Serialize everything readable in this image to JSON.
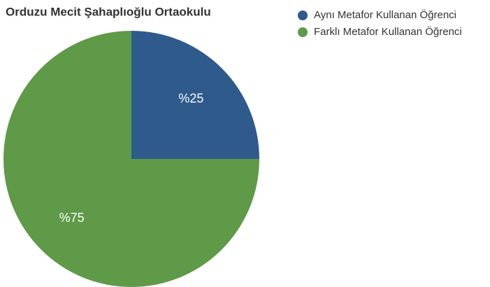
{
  "chart_data": {
    "type": "pie",
    "title": "Orduzu Mecit Şahaplıoğlu Ortaokulu",
    "categories": [
      "Aynı Metafor Kullanan Öğrenci",
      "Farklı Metafor Kullanan Öğrenci"
    ],
    "values": [
      25,
      75
    ],
    "value_labels": [
      "%25",
      "%75"
    ],
    "colors": [
      "#2e5a8c",
      "#5e9a47"
    ],
    "legend": "top-right"
  }
}
